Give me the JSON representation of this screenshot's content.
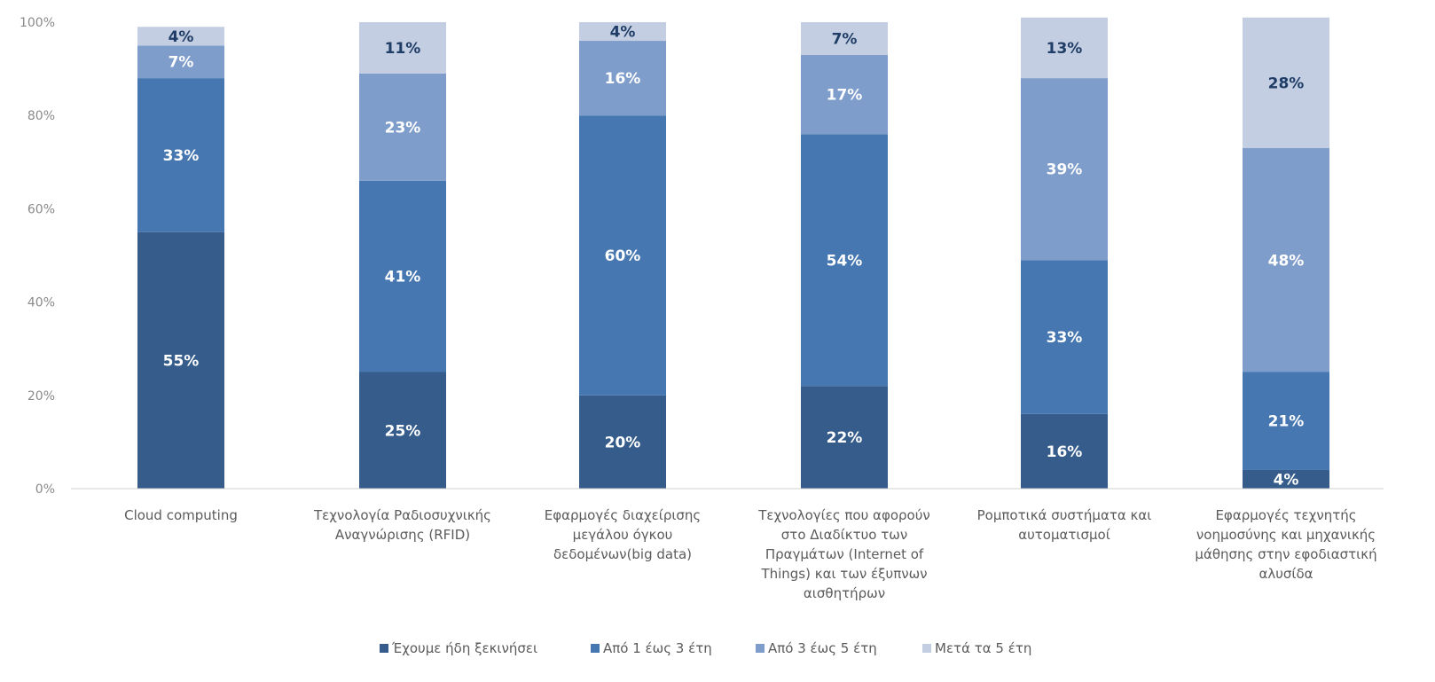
{
  "chart_data": {
    "type": "bar",
    "stacked": true,
    "percent": true,
    "ylim": [
      0,
      100
    ],
    "yticks": [
      "0%",
      "20%",
      "40%",
      "60%",
      "80%",
      "100%"
    ],
    "categories": [
      [
        "Cloud computing"
      ],
      [
        "Τεχνολογία Ραδιοσυχνικής",
        "Αναγνώρισης (RFID)"
      ],
      [
        "Εφαρμογές διαχείρισης",
        "μεγάλου όγκου",
        "δεδομένων(big data)"
      ],
      [
        "Τεχνολογίες που αφορούν",
        "στο Διαδίκτυο των",
        "Πραγμάτων (Internet of",
        "Things) και των έξυπνων",
        "αισθητήρων"
      ],
      [
        "Ρομποτικά συστήματα και",
        "αυτοματισμοί"
      ],
      [
        "Εφαρμογές τεχνητής",
        "νοημοσύνης και μηχανικής",
        "μάθησης στην εφοδιαστική",
        "αλυσίδα"
      ]
    ],
    "series": [
      {
        "name": "Έχουμε ήδη ξεκινήσει",
        "color": "#355C8A",
        "values": [
          55,
          25,
          20,
          22,
          16,
          4
        ]
      },
      {
        "name": "Από 1 έως 3 έτη",
        "color": "#4677B0",
        "values": [
          33,
          41,
          60,
          54,
          33,
          21
        ]
      },
      {
        "name": "Από 3 έως 5 έτη",
        "color": "#7E9DCB",
        "values": [
          7,
          23,
          16,
          17,
          39,
          48
        ]
      },
      {
        "name": "Μετά τα 5 έτη",
        "color": "#C4CEE2",
        "values": [
          4,
          11,
          4,
          7,
          13,
          28
        ]
      }
    ],
    "grid": false,
    "legend_position": "bottom"
  }
}
